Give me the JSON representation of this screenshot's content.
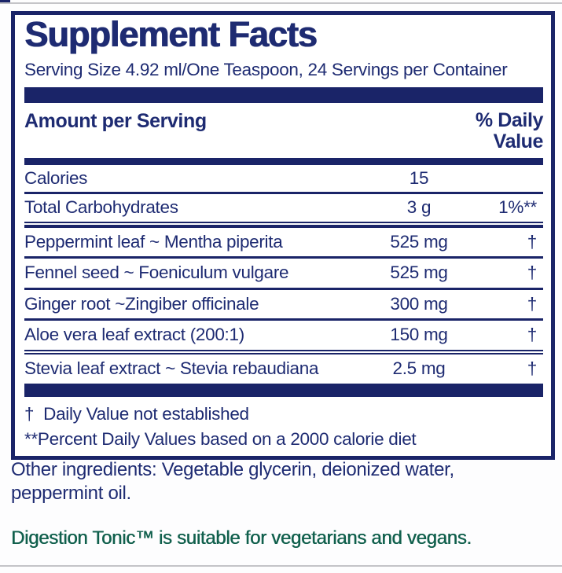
{
  "panel": {
    "title": "Supplement Facts",
    "serving_line": "Serving Size 4.92 ml/One Teaspoon, 24 Servings per Container",
    "columns": {
      "amount_header": "Amount per Serving",
      "daily_value_line1": "% Daily",
      "daily_value_line2": "Value"
    },
    "rows": [
      {
        "name": "Calories",
        "amount": "15",
        "dv": ""
      },
      {
        "name": "Total Carbohydrates",
        "amount": "3 g",
        "dv": "1%**"
      },
      {
        "name": "Peppermint leaf ~ Mentha piperita",
        "amount": "525 mg",
        "dv": "†"
      },
      {
        "name": "Fennel seed ~ Foeniculum vulgare",
        "amount": "525 mg",
        "dv": "†"
      },
      {
        "name": "Ginger root ~Zingiber officinale",
        "amount": "300 mg",
        "dv": "†"
      },
      {
        "name": "Aloe vera leaf extract (200:1)",
        "amount": "150 mg",
        "dv": "†"
      },
      {
        "name": "Stevia leaf extract ~ Stevia rebaudiana",
        "amount": "2.5 mg",
        "dv": "†"
      }
    ],
    "footnotes": {
      "dagger": "†  Daily Value not established",
      "percent": "**Percent Daily Values based on a 2000 calorie diet"
    }
  },
  "below_panel": {
    "other_ingredients_line1": "Other ingredients: Vegetable glycerin, deionized water,",
    "other_ingredients_line2": "peppermint oil.",
    "suitability": "Digestion Tonic™ is suitable for vegetarians and vegans."
  },
  "colors": {
    "navy_text": "#1e2b72",
    "navy_rule": "#1a2468",
    "green_text": "#11604d",
    "edge_gray": "#c4c4c8"
  }
}
